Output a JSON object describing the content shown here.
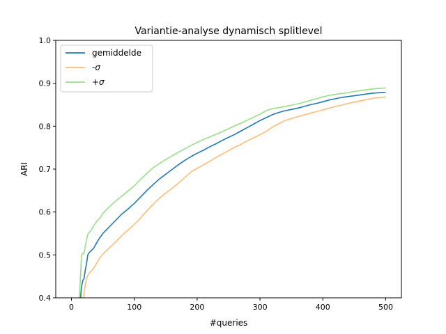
{
  "chart_data": {
    "type": "line",
    "title": "Variantie-analyse dynamisch splitlevel",
    "xlabel": "#queries",
    "ylabel": "ARI",
    "xlim": [
      -25,
      525
    ],
    "ylim": [
      0.4,
      1.0
    ],
    "xticks": [
      0,
      100,
      200,
      300,
      400,
      500
    ],
    "yticks": [
      0.4,
      0.5,
      0.6,
      0.7,
      0.8,
      0.9,
      1.0
    ],
    "xtick_labels": [
      "0",
      "100",
      "200",
      "300",
      "400",
      "500"
    ],
    "ytick_labels": [
      "0.4",
      "0.5",
      "0.6",
      "0.7",
      "0.8",
      "0.9",
      "1.0"
    ],
    "grid": false,
    "legend_position": "upper left",
    "series": [
      {
        "name": "gemiddelde",
        "color": "#1f77b4",
        "x": [
          14,
          15,
          16,
          18,
          20,
          22,
          24,
          26,
          28,
          30,
          35,
          40,
          45,
          50,
          60,
          70,
          80,
          90,
          100,
          110,
          120,
          130,
          140,
          150,
          160,
          170,
          180,
          190,
          200,
          210,
          220,
          230,
          240,
          250,
          260,
          270,
          280,
          290,
          300,
          310,
          320,
          330,
          340,
          350,
          360,
          370,
          380,
          390,
          400,
          410,
          420,
          430,
          440,
          450,
          460,
          470,
          480,
          490,
          500
        ],
        "y": [
          0.38,
          0.41,
          0.425,
          0.44,
          0.445,
          0.465,
          0.48,
          0.5,
          0.505,
          0.508,
          0.515,
          0.528,
          0.54,
          0.55,
          0.565,
          0.58,
          0.595,
          0.607,
          0.62,
          0.635,
          0.65,
          0.664,
          0.677,
          0.688,
          0.699,
          0.71,
          0.72,
          0.729,
          0.737,
          0.744,
          0.752,
          0.759,
          0.767,
          0.774,
          0.781,
          0.789,
          0.797,
          0.805,
          0.813,
          0.82,
          0.827,
          0.832,
          0.836,
          0.839,
          0.842,
          0.846,
          0.85,
          0.853,
          0.857,
          0.861,
          0.864,
          0.867,
          0.869,
          0.871,
          0.873,
          0.875,
          0.877,
          0.878,
          0.879
        ]
      },
      {
        "name": "-σ",
        "color": "#ffbb78",
        "x": [
          18,
          20,
          22,
          24,
          26,
          28,
          30,
          35,
          40,
          45,
          50,
          60,
          70,
          80,
          90,
          100,
          110,
          120,
          130,
          140,
          150,
          160,
          170,
          180,
          190,
          200,
          210,
          220,
          230,
          240,
          250,
          260,
          270,
          280,
          290,
          300,
          310,
          320,
          330,
          340,
          350,
          360,
          370,
          380,
          390,
          400,
          410,
          420,
          430,
          440,
          450,
          460,
          470,
          480,
          490,
          500
        ],
        "y": [
          0.38,
          0.41,
          0.43,
          0.445,
          0.452,
          0.457,
          0.46,
          0.468,
          0.48,
          0.493,
          0.502,
          0.516,
          0.53,
          0.545,
          0.558,
          0.571,
          0.586,
          0.603,
          0.618,
          0.632,
          0.644,
          0.655,
          0.667,
          0.68,
          0.693,
          0.702,
          0.71,
          0.718,
          0.727,
          0.735,
          0.743,
          0.751,
          0.758,
          0.766,
          0.773,
          0.78,
          0.788,
          0.798,
          0.806,
          0.813,
          0.818,
          0.822,
          0.826,
          0.83,
          0.834,
          0.838,
          0.842,
          0.846,
          0.849,
          0.853,
          0.856,
          0.859,
          0.862,
          0.865,
          0.867,
          0.868
        ]
      },
      {
        "name": "+σ",
        "color": "#98df8a",
        "x": [
          12,
          13,
          14,
          15,
          16,
          18,
          20,
          22,
          24,
          26,
          28,
          30,
          35,
          40,
          45,
          50,
          60,
          70,
          80,
          90,
          100,
          110,
          120,
          130,
          140,
          150,
          160,
          170,
          180,
          190,
          200,
          210,
          220,
          230,
          240,
          250,
          260,
          270,
          280,
          290,
          300,
          310,
          320,
          330,
          340,
          350,
          360,
          370,
          380,
          390,
          400,
          410,
          420,
          430,
          440,
          450,
          460,
          470,
          480,
          490,
          500
        ],
        "y": [
          0.38,
          0.41,
          0.44,
          0.47,
          0.5,
          0.503,
          0.503,
          0.52,
          0.535,
          0.548,
          0.552,
          0.555,
          0.567,
          0.578,
          0.585,
          0.597,
          0.612,
          0.625,
          0.637,
          0.649,
          0.661,
          0.676,
          0.69,
          0.703,
          0.713,
          0.722,
          0.731,
          0.739,
          0.747,
          0.755,
          0.762,
          0.769,
          0.775,
          0.781,
          0.787,
          0.794,
          0.801,
          0.807,
          0.814,
          0.821,
          0.828,
          0.836,
          0.841,
          0.843,
          0.846,
          0.849,
          0.852,
          0.856,
          0.86,
          0.864,
          0.868,
          0.872,
          0.874,
          0.876,
          0.878,
          0.881,
          0.883,
          0.885,
          0.887,
          0.888,
          0.889
        ]
      }
    ]
  }
}
